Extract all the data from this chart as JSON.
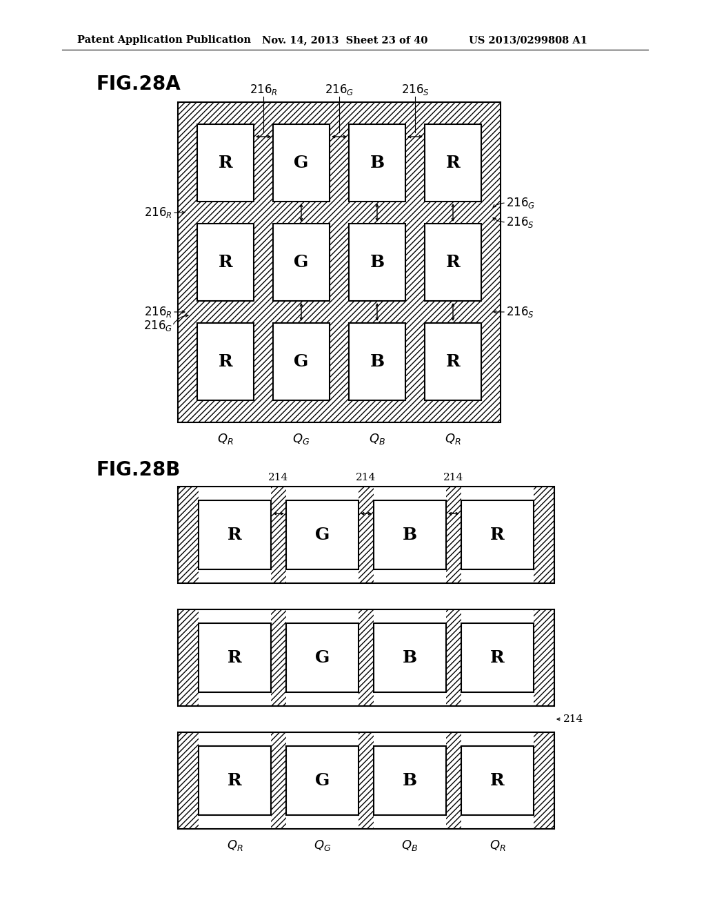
{
  "title_header": "Patent Application Publication",
  "date_header": "Nov. 14, 2013  Sheet 23 of 40",
  "patent_header": "US 2013/0299808 A1",
  "fig_a_label": "FIG.28A",
  "fig_b_label": "FIG.28B",
  "bg_color": "#ffffff",
  "cell_labels": [
    "R",
    "G",
    "B",
    "R"
  ],
  "q_labels": [
    "Q_R",
    "Q_G",
    "Q_B",
    "Q_R"
  ]
}
